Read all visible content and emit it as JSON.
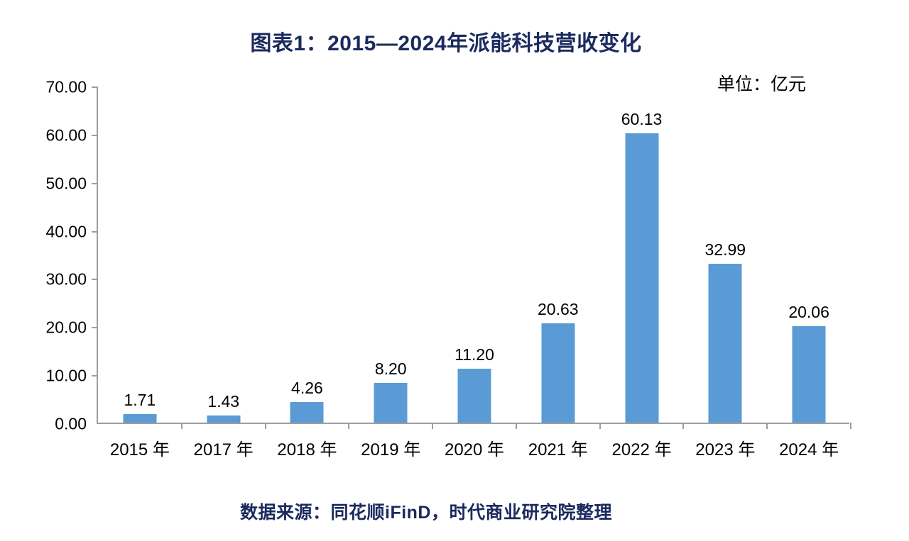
{
  "page": {
    "title": "图表1：2015—2024年派能科技营收变化",
    "unit_label": "单位：亿元",
    "source": "数据来源：同花顺iFinD，时代商业研究院整理"
  },
  "colors": {
    "bar_blue": "#5b9bd5",
    "title_navy": "#1b2a5e",
    "axis_gray": "#9e9e9e",
    "label_black": "#000000"
  },
  "chart_data": {
    "type": "bar",
    "title": "图表1：2015—2024年派能科技营收变化",
    "unit": "单位：亿元",
    "categories": [
      "2015 年",
      "2017 年",
      "2018 年",
      "2019 年",
      "2020 年",
      "2021 年",
      "2022 年",
      "2023 年",
      "2024 年"
    ],
    "values": [
      1.71,
      1.43,
      4.26,
      8.2,
      11.2,
      20.63,
      60.13,
      32.99,
      20.06
    ],
    "data_labels": [
      "1.71",
      "1.43",
      "4.26",
      "8.20",
      "11.20",
      "20.63",
      "60.13",
      "32.99",
      "20.06"
    ],
    "xlabel": "",
    "ylabel": "",
    "ylim": [
      0,
      70
    ],
    "ytick_step": 10,
    "ytick_labels": [
      "0.00",
      "10.00",
      "20.00",
      "30.00",
      "40.00",
      "50.00",
      "60.00",
      "70.00"
    ],
    "grid": false,
    "legend_position": "none",
    "source": "数据来源：同花顺iFinD，时代商业研究院整理"
  }
}
